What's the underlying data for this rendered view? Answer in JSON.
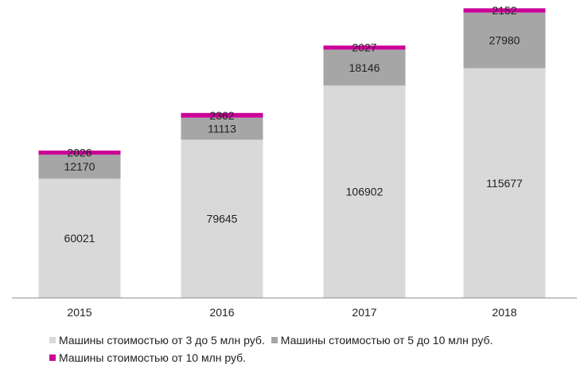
{
  "chart_data": {
    "type": "bar",
    "stacked": true,
    "categories": [
      "2015",
      "2016",
      "2017",
      "2018"
    ],
    "series": [
      {
        "name": "Машины стоимостью от 3 до 5 млн руб.",
        "color": "#d9d9d9",
        "values": [
          60021,
          79645,
          106902,
          115677
        ]
      },
      {
        "name": "Машины стоимостью от 5 до 10 млн руб.",
        "color": "#a6a6a6",
        "values": [
          12170,
          11113,
          18146,
          27980
        ]
      },
      {
        "name": "Машины стоимостью от 10 млн руб.",
        "color": "#cc0099",
        "values": [
          2026,
          2362,
          2027,
          2152
        ]
      }
    ],
    "ylim": [
      0,
      150000
    ],
    "grid": false,
    "data_labels": true,
    "legend_position": "bottom"
  }
}
